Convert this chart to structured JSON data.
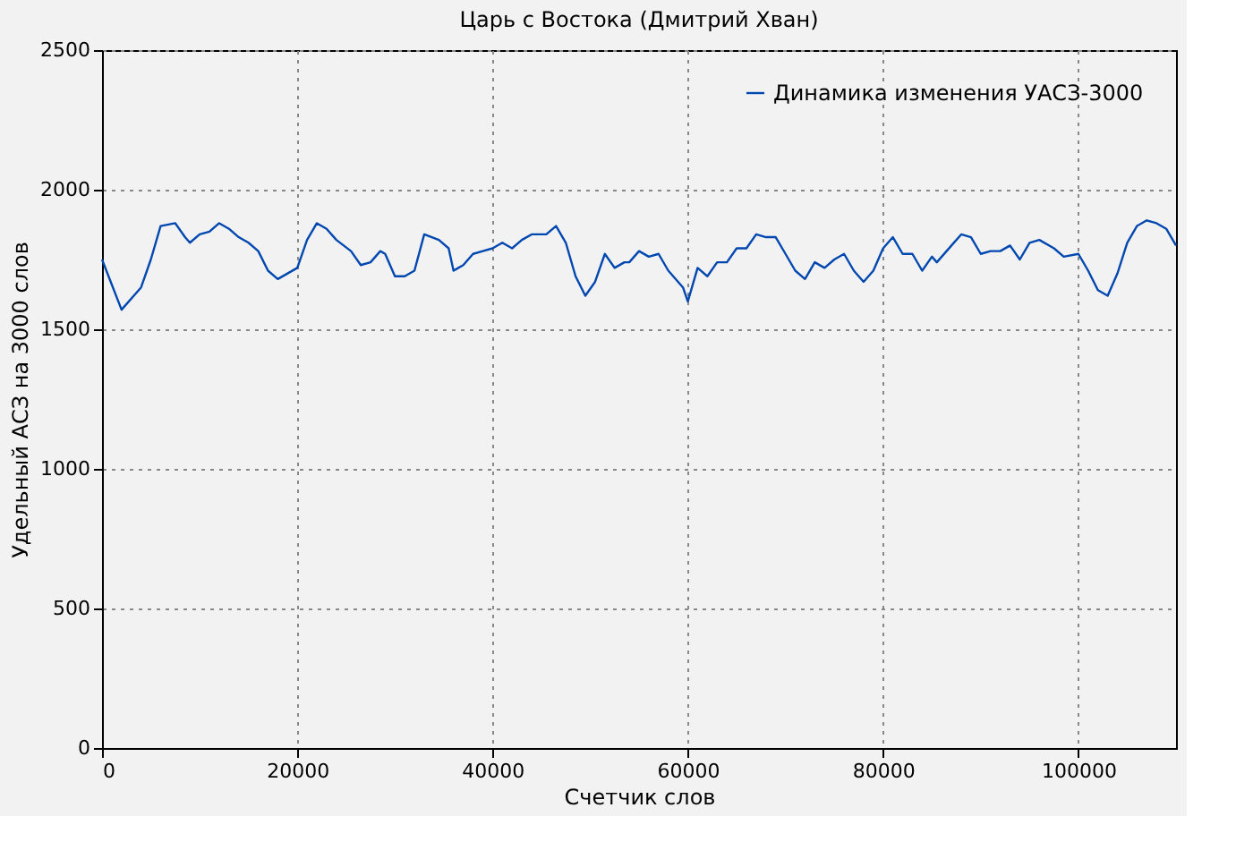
{
  "chart_data": {
    "type": "line",
    "title": "Царь с Востока (Дмитрий Хван)",
    "xlabel": "Счетчик слов",
    "ylabel": "Удельный АСЗ на 3000 слов",
    "xlim": [
      0,
      110000
    ],
    "xticks": [
      0,
      20000,
      40000,
      60000,
      80000,
      100000
    ],
    "ylim": [
      0,
      2500
    ],
    "yticks": [
      0,
      500,
      1000,
      1500,
      2000,
      2500
    ],
    "grid": true,
    "legend": "top right",
    "line_style": "solid",
    "marker": "none",
    "series": [
      {
        "name": "Динамика изменения УАСЗ-3000",
        "color": "#0048b0",
        "x": [
          0,
          2000,
          4000,
          5000,
          6000,
          7500,
          8500,
          9000,
          10000,
          11000,
          12000,
          13000,
          14000,
          15000,
          16000,
          17000,
          18000,
          19000,
          20000,
          21000,
          22000,
          23000,
          24000,
          25500,
          26500,
          27500,
          28500,
          29000,
          30000,
          31000,
          32000,
          33000,
          34500,
          35500,
          36000,
          37000,
          38000,
          39000,
          40000,
          41000,
          42000,
          43000,
          44000,
          45500,
          46500,
          47500,
          48500,
          49500,
          50500,
          51500,
          52500,
          53500,
          54000,
          55000,
          56000,
          57000,
          58000,
          59500,
          60000,
          61000,
          62000,
          63000,
          64000,
          65000,
          66000,
          67000,
          68000,
          69000,
          70000,
          71000,
          72000,
          73000,
          74000,
          75000,
          76000,
          77000,
          78000,
          79000,
          80000,
          81000,
          82000,
          83000,
          84000,
          85000,
          85500,
          87000,
          88000,
          89000,
          90000,
          91000,
          92000,
          93000,
          94000,
          95000,
          96000,
          97500,
          98500,
          100000,
          101000,
          102000,
          103000,
          104000,
          105000,
          106000,
          107000,
          108000,
          109000,
          110000
        ],
        "values": [
          1750,
          1570,
          1650,
          1750,
          1870,
          1880,
          1830,
          1810,
          1840,
          1850,
          1880,
          1860,
          1830,
          1810,
          1780,
          1710,
          1680,
          1700,
          1720,
          1820,
          1880,
          1860,
          1820,
          1780,
          1730,
          1740,
          1780,
          1770,
          1690,
          1690,
          1710,
          1840,
          1820,
          1790,
          1710,
          1730,
          1770,
          1780,
          1790,
          1810,
          1790,
          1820,
          1840,
          1840,
          1870,
          1810,
          1690,
          1620,
          1670,
          1770,
          1720,
          1740,
          1740,
          1780,
          1760,
          1770,
          1710,
          1650,
          1600,
          1720,
          1690,
          1740,
          1740,
          1790,
          1790,
          1840,
          1830,
          1830,
          1770,
          1710,
          1680,
          1740,
          1720,
          1750,
          1770,
          1710,
          1670,
          1710,
          1790,
          1830,
          1770,
          1770,
          1710,
          1760,
          1740,
          1800,
          1840,
          1830,
          1770,
          1780,
          1780,
          1800,
          1750,
          1810,
          1820,
          1790,
          1760,
          1770,
          1710,
          1640,
          1620,
          1700,
          1810,
          1870,
          1890,
          1880,
          1860,
          1800
        ]
      }
    ]
  }
}
